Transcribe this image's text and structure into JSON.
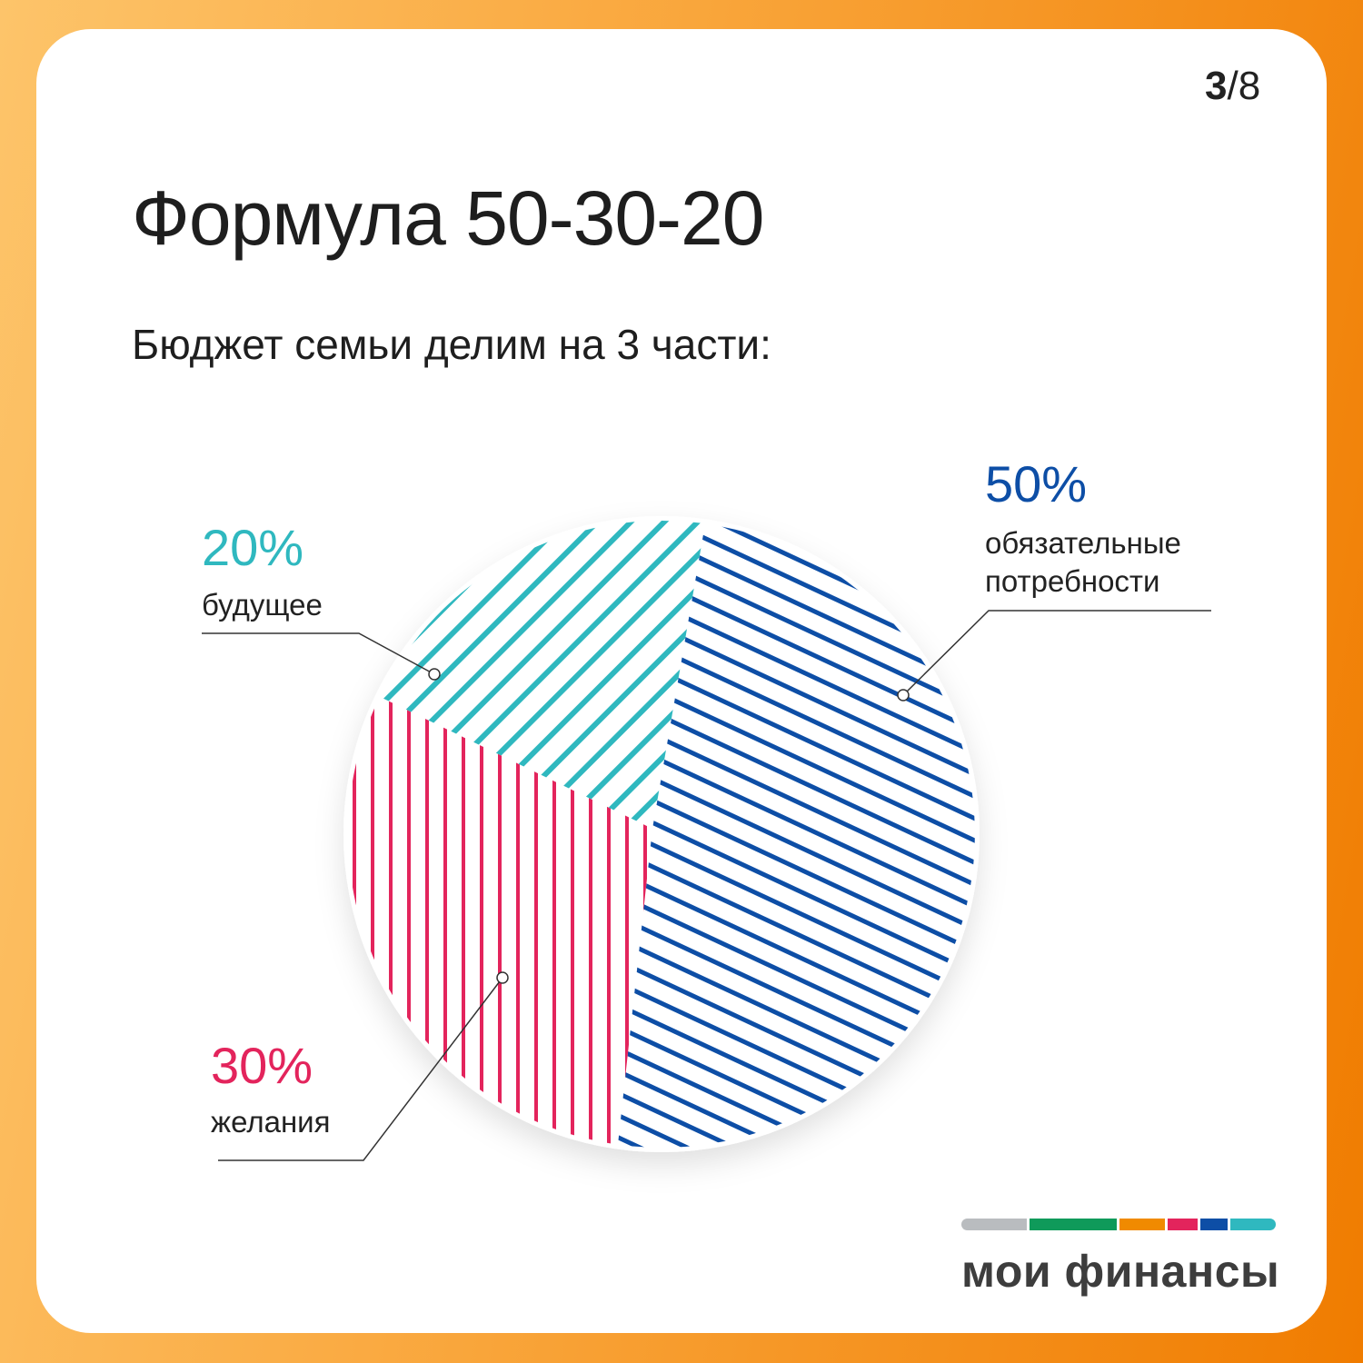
{
  "page": {
    "current": "3",
    "separator": "/",
    "total": "8"
  },
  "title": "Формула 50-30-20",
  "subtitle": "Бюджет семьи делим на 3 части:",
  "chart_data": {
    "type": "pie",
    "slices": [
      {
        "value": 50,
        "label_pct": "50%",
        "label": [
          "обязательные",
          "потребности"
        ],
        "color": "#0d4ea6"
      },
      {
        "value": 30,
        "label_pct": "30%",
        "label": [
          "желания"
        ],
        "color": "#e3245c"
      },
      {
        "value": 20,
        "label_pct": "20%",
        "label": [
          "будущее"
        ],
        "color": "#2fb8bf"
      }
    ]
  },
  "logo": {
    "text": "мои финансы",
    "stripe_colors": [
      "#b9bcbf",
      "#0f9a5a",
      "#f08a00",
      "#e3245c",
      "#0d4ea6",
      "#2fb8bf"
    ]
  }
}
